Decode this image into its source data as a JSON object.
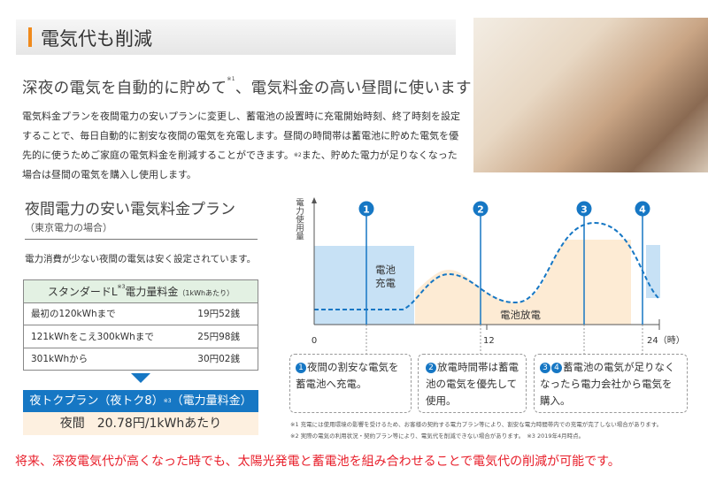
{
  "header": {
    "title": "電気代も削減"
  },
  "subtitle": {
    "text": "深夜の電気を自動的に貯めて",
    "sup": "※1",
    "rest": "、電気料金の高い昼間に使います"
  },
  "body": {
    "p1": "電気料金プランを夜間電力の安いプランに変更し、蓄電池の設置時に充電開始時刻、終了時刻を設定することで、毎日自動的に割安な夜間の電気を充電します。昼間の時間帯は蓄電池に貯めた電気を優先的に使うためご家庭の電気料金を削減することができます。",
    "sup": "※2",
    "p2": "また、貯めた電力が足りなくなった場合は昼間の電気を購入し使用します。"
  },
  "plan": {
    "title": "夜間電力の安い電気料金プラン",
    "subtitle": "（東京電力の場合）",
    "note": "電力消費が少ない夜間の電気は安く設定されています。",
    "table": {
      "header": "スタンダードL",
      "header_sup": "※3",
      "header_rest": "電力量料金",
      "header_unit": "（1kWhあたり）",
      "rows": [
        {
          "label": "最初の120kWhまで",
          "value": "19円52銭"
        },
        {
          "label": "121kWhをこえ300kWhまで",
          "value": "25円98銭"
        },
        {
          "label": "301kWhから",
          "value": "30円02銭"
        }
      ]
    },
    "night_plan": {
      "label": "夜トクプラン（夜トク8）",
      "sup": "※3",
      "rest": "（電力量料金）",
      "value": "夜間　20.78円/1kWhあたり"
    }
  },
  "diagram": {
    "ylabel": "電力使用量",
    "ticks": [
      "0",
      "12",
      "24（時）"
    ],
    "charge_label": "電池充電",
    "discharge_label": "電池放電",
    "markers": [
      "1",
      "2",
      "3",
      "4"
    ],
    "colors": {
      "accent": "#1677c4",
      "charge": "#c7e1f5",
      "discharge": "#fdebd4"
    },
    "boxes": [
      {
        "nums": [
          "1"
        ],
        "text": "夜間の割安な電気を蓄電池へ充電。"
      },
      {
        "nums": [
          "2"
        ],
        "text": "放電時間帯は蓄電池の電気を優先して使用。"
      },
      {
        "nums": [
          "3",
          "4"
        ],
        "text": "蓄電池の電気が足りなくなったら電力会社から電気を購入。"
      }
    ],
    "footnotes": [
      "※1 充電には使用環境の影響を受けるため、お客様の契約する電力プラン等により、割安な電力時間帯内での充電が完了しない場合があります。",
      "※2 実際の電気の利用状況・契約プラン等により、電気代を削減できない場合があります。　※3 2019年4月時点。"
    ]
  },
  "bottom": {
    "text": "将来、深夜電気代が高くなった時でも、太陽光発電と蓄電池を組み合わせることで電気代の削減が可能です。"
  },
  "photo": {
    "icon": "family-photo"
  }
}
